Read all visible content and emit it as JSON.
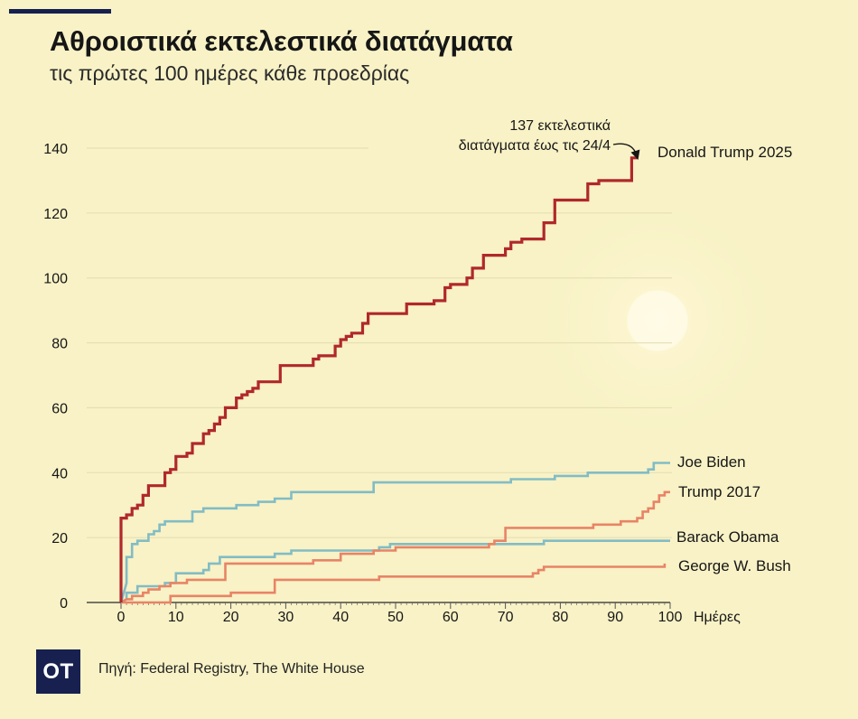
{
  "title": "Αθροιστικά εκτελεστικά διατάγματα",
  "subtitle": "τις πρώτες 100 ημέρες κάθε προεδρίας",
  "source": "Πηγή: Federal Registry, The White House",
  "logo_text": "OT",
  "colors": {
    "background": "#f8f2c6",
    "trump2025": "#b0282b",
    "blue": "#82bcc4",
    "orange": "#e88466",
    "brand": "#17204f"
  },
  "chart_data": {
    "type": "line",
    "title": "Αθροιστικά εκτελεστικά διατάγματα",
    "subtitle": "τις πρώτες 100 ημέρες κάθε προεδρίας",
    "xlabel": "Ημέρες",
    "ylabel": "",
    "xlim": [
      0,
      100
    ],
    "ylim": [
      0,
      140
    ],
    "xticks": [
      "0",
      "10",
      "20",
      "30",
      "40",
      "50",
      "60",
      "70",
      "80",
      "90",
      "100"
    ],
    "yticks": [
      "0",
      "20",
      "40",
      "60",
      "80",
      "100",
      "120",
      "140"
    ],
    "x_unit_label": "Ημέρες",
    "grid": true,
    "annotation": {
      "lines": [
        "137 εκτελεστικά",
        "διατάγματα έως τις 24/4"
      ],
      "x": 94,
      "y": 137
    },
    "series": [
      {
        "name": "Donald Trump 2025",
        "color": "#b0282b",
        "width": 3.2,
        "points": [
          [
            0,
            0
          ],
          [
            0,
            26
          ],
          [
            1,
            26
          ],
          [
            1,
            27
          ],
          [
            2,
            27
          ],
          [
            2,
            29
          ],
          [
            3,
            29
          ],
          [
            3,
            30
          ],
          [
            4,
            30
          ],
          [
            4,
            33
          ],
          [
            5,
            33
          ],
          [
            5,
            36
          ],
          [
            8,
            36
          ],
          [
            8,
            40
          ],
          [
            9,
            40
          ],
          [
            9,
            41
          ],
          [
            10,
            41
          ],
          [
            10,
            45
          ],
          [
            12,
            45
          ],
          [
            12,
            46
          ],
          [
            13,
            46
          ],
          [
            13,
            49
          ],
          [
            15,
            49
          ],
          [
            15,
            52
          ],
          [
            16,
            52
          ],
          [
            16,
            53
          ],
          [
            17,
            53
          ],
          [
            17,
            55
          ],
          [
            18,
            55
          ],
          [
            18,
            57
          ],
          [
            19,
            57
          ],
          [
            19,
            60
          ],
          [
            21,
            60
          ],
          [
            21,
            63
          ],
          [
            22,
            63
          ],
          [
            22,
            64
          ],
          [
            23,
            64
          ],
          [
            23,
            65
          ],
          [
            24,
            65
          ],
          [
            24,
            66
          ],
          [
            25,
            66
          ],
          [
            25,
            68
          ],
          [
            29,
            68
          ],
          [
            29,
            73
          ],
          [
            35,
            73
          ],
          [
            35,
            75
          ],
          [
            36,
            75
          ],
          [
            36,
            76
          ],
          [
            39,
            76
          ],
          [
            39,
            79
          ],
          [
            40,
            79
          ],
          [
            40,
            81
          ],
          [
            41,
            81
          ],
          [
            41,
            82
          ],
          [
            42,
            82
          ],
          [
            42,
            83
          ],
          [
            44,
            83
          ],
          [
            44,
            86
          ],
          [
            45,
            86
          ],
          [
            45,
            89
          ],
          [
            52,
            89
          ],
          [
            52,
            92
          ],
          [
            57,
            92
          ],
          [
            57,
            93
          ],
          [
            59,
            93
          ],
          [
            59,
            97
          ],
          [
            60,
            97
          ],
          [
            60,
            98
          ],
          [
            63,
            98
          ],
          [
            63,
            100
          ],
          [
            64,
            100
          ],
          [
            64,
            103
          ],
          [
            66,
            103
          ],
          [
            66,
            107
          ],
          [
            70,
            107
          ],
          [
            70,
            109
          ],
          [
            71,
            109
          ],
          [
            71,
            111
          ],
          [
            73,
            111
          ],
          [
            73,
            112
          ],
          [
            77,
            112
          ],
          [
            77,
            117
          ],
          [
            79,
            117
          ],
          [
            79,
            124
          ],
          [
            85,
            124
          ],
          [
            85,
            129
          ],
          [
            87,
            129
          ],
          [
            87,
            130
          ],
          [
            93,
            130
          ],
          [
            93,
            137
          ],
          [
            94,
            137
          ]
        ]
      },
      {
        "name": "Joe Biden",
        "color": "#82bcc4",
        "width": 2.6,
        "points": [
          [
            0,
            0
          ],
          [
            1,
            6
          ],
          [
            1,
            14
          ],
          [
            2,
            14
          ],
          [
            2,
            18
          ],
          [
            3,
            18
          ],
          [
            3,
            19
          ],
          [
            5,
            19
          ],
          [
            5,
            21
          ],
          [
            6,
            21
          ],
          [
            6,
            22
          ],
          [
            7,
            22
          ],
          [
            7,
            24
          ],
          [
            8,
            24
          ],
          [
            8,
            25
          ],
          [
            13,
            25
          ],
          [
            13,
            28
          ],
          [
            15,
            28
          ],
          [
            15,
            29
          ],
          [
            21,
            29
          ],
          [
            21,
            30
          ],
          [
            25,
            30
          ],
          [
            25,
            31
          ],
          [
            28,
            31
          ],
          [
            28,
            32
          ],
          [
            31,
            32
          ],
          [
            31,
            34
          ],
          [
            46,
            34
          ],
          [
            46,
            37
          ],
          [
            71,
            37
          ],
          [
            71,
            38
          ],
          [
            79,
            38
          ],
          [
            79,
            39
          ],
          [
            85,
            39
          ],
          [
            85,
            40
          ],
          [
            96,
            40
          ],
          [
            96,
            41
          ],
          [
            97,
            41
          ],
          [
            97,
            43
          ],
          [
            100,
            43
          ]
        ]
      },
      {
        "name": "Trump 2017",
        "color": "#e88466",
        "width": 2.6,
        "points": [
          [
            0,
            0
          ],
          [
            1,
            1
          ],
          [
            2,
            1
          ],
          [
            2,
            2
          ],
          [
            4,
            2
          ],
          [
            4,
            3
          ],
          [
            5,
            3
          ],
          [
            5,
            4
          ],
          [
            7,
            4
          ],
          [
            7,
            5
          ],
          [
            9,
            5
          ],
          [
            9,
            6
          ],
          [
            12,
            6
          ],
          [
            12,
            7
          ],
          [
            19,
            7
          ],
          [
            19,
            12
          ],
          [
            35,
            12
          ],
          [
            35,
            13
          ],
          [
            40,
            13
          ],
          [
            40,
            15
          ],
          [
            46,
            15
          ],
          [
            46,
            16
          ],
          [
            50,
            16
          ],
          [
            50,
            17
          ],
          [
            67,
            17
          ],
          [
            67,
            18
          ],
          [
            68,
            18
          ],
          [
            68,
            19
          ],
          [
            70,
            19
          ],
          [
            70,
            23
          ],
          [
            86,
            23
          ],
          [
            86,
            24
          ],
          [
            91,
            24
          ],
          [
            91,
            25
          ],
          [
            94,
            25
          ],
          [
            94,
            26
          ],
          [
            95,
            26
          ],
          [
            95,
            28
          ],
          [
            96,
            28
          ],
          [
            96,
            29
          ],
          [
            97,
            29
          ],
          [
            97,
            31
          ],
          [
            98,
            31
          ],
          [
            98,
            33
          ],
          [
            99,
            33
          ],
          [
            99,
            34
          ],
          [
            100,
            34
          ]
        ]
      },
      {
        "name": "Barack Obama",
        "color": "#82bcc4",
        "width": 2.6,
        "points": [
          [
            0,
            0
          ],
          [
            1,
            1
          ],
          [
            1,
            3
          ],
          [
            3,
            3
          ],
          [
            3,
            5
          ],
          [
            8,
            5
          ],
          [
            8,
            6
          ],
          [
            10,
            6
          ],
          [
            10,
            9
          ],
          [
            15,
            9
          ],
          [
            15,
            10
          ],
          [
            16,
            10
          ],
          [
            16,
            12
          ],
          [
            18,
            12
          ],
          [
            18,
            14
          ],
          [
            28,
            14
          ],
          [
            28,
            15
          ],
          [
            31,
            15
          ],
          [
            31,
            16
          ],
          [
            47,
            16
          ],
          [
            47,
            17
          ],
          [
            49,
            17
          ],
          [
            49,
            18
          ],
          [
            77,
            18
          ],
          [
            77,
            19
          ],
          [
            100,
            19
          ]
        ]
      },
      {
        "name": "George W. Bush",
        "color": "#e88466",
        "width": 2.6,
        "points": [
          [
            0,
            0
          ],
          [
            9,
            0
          ],
          [
            9,
            2
          ],
          [
            20,
            2
          ],
          [
            20,
            3
          ],
          [
            28,
            3
          ],
          [
            28,
            7
          ],
          [
            47,
            7
          ],
          [
            47,
            8
          ],
          [
            75,
            8
          ],
          [
            75,
            9
          ],
          [
            76,
            9
          ],
          [
            76,
            10
          ],
          [
            77,
            10
          ],
          [
            77,
            11
          ],
          [
            99,
            11
          ],
          [
            99,
            12
          ]
        ]
      }
    ]
  }
}
